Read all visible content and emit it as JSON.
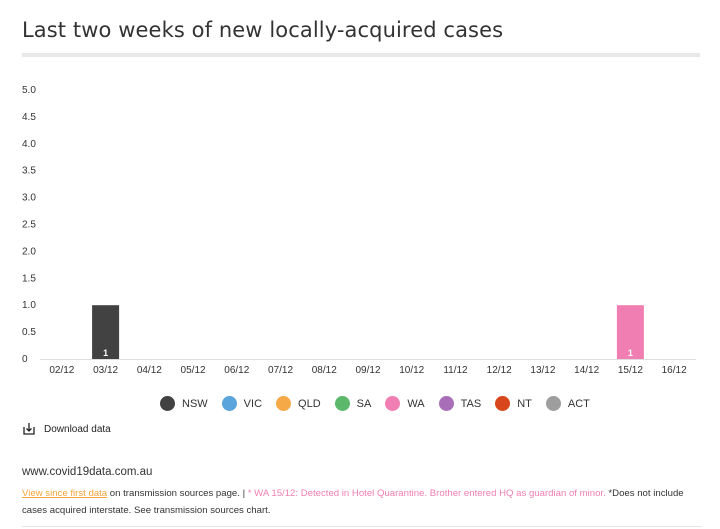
{
  "header": {
    "title": "Last two weeks of new locally-acquired cases"
  },
  "chart_data": {
    "type": "bar",
    "title": "Last two weeks of new locally-acquired cases",
    "categories": [
      "02/12",
      "03/12",
      "04/12",
      "05/12",
      "06/12",
      "07/12",
      "08/12",
      "09/12",
      "10/12",
      "11/12",
      "12/12",
      "13/12",
      "14/12",
      "15/12",
      "16/12"
    ],
    "y_ticks": [
      "0",
      "0.5",
      "1.0",
      "1.5",
      "2.0",
      "2.5",
      "3.0",
      "3.5",
      "4.0",
      "4.5",
      "5.0"
    ],
    "ylim": [
      0,
      5
    ],
    "stacked": true,
    "series": [
      {
        "name": "NSW",
        "color": "#424242",
        "values": [
          0,
          1,
          0,
          0,
          0,
          0,
          0,
          0,
          0,
          0,
          0,
          0,
          0,
          0,
          0
        ]
      },
      {
        "name": "VIC",
        "color": "#5aa5db",
        "values": [
          0,
          0,
          0,
          0,
          0,
          0,
          0,
          0,
          0,
          0,
          0,
          0,
          0,
          0,
          0
        ]
      },
      {
        "name": "QLD",
        "color": "#f5a947",
        "values": [
          0,
          0,
          0,
          0,
          0,
          0,
          0,
          0,
          0,
          0,
          0,
          0,
          0,
          0,
          0
        ]
      },
      {
        "name": "SA",
        "color": "#5cb86a",
        "values": [
          0,
          0,
          0,
          0,
          0,
          0,
          0,
          0,
          0,
          0,
          0,
          0,
          0,
          0,
          0
        ]
      },
      {
        "name": "WA",
        "color": "#f07eb3",
        "values": [
          0,
          0,
          0,
          0,
          0,
          0,
          0,
          0,
          0,
          0,
          0,
          0,
          0,
          1,
          0
        ]
      },
      {
        "name": "TAS",
        "color": "#a86fb8",
        "values": [
          0,
          0,
          0,
          0,
          0,
          0,
          0,
          0,
          0,
          0,
          0,
          0,
          0,
          0,
          0
        ]
      },
      {
        "name": "NT",
        "color": "#d7471b",
        "values": [
          0,
          0,
          0,
          0,
          0,
          0,
          0,
          0,
          0,
          0,
          0,
          0,
          0,
          0,
          0
        ]
      },
      {
        "name": "ACT",
        "color": "#9e9e9e",
        "values": [
          0,
          0,
          0,
          0,
          0,
          0,
          0,
          0,
          0,
          0,
          0,
          0,
          0,
          0,
          0
        ]
      }
    ],
    "data_labels": [
      "",
      "1",
      "",
      "",
      "",
      "",
      "",
      "",
      "",
      "",
      "",
      "",
      "",
      "1",
      ""
    ]
  },
  "download": {
    "label": "Download data"
  },
  "footer": {
    "site": "www.covid19data.com.au",
    "link_text": "View since first data",
    "text_after_link": " on transmission sources page. | ",
    "wa_note": "* WA 15/12: Detected in Hotel Quarantine. Brother entered HQ as guardian of minor.",
    "trailing_note": " *Does not include cases acquired interstate. See transmission sources chart."
  }
}
